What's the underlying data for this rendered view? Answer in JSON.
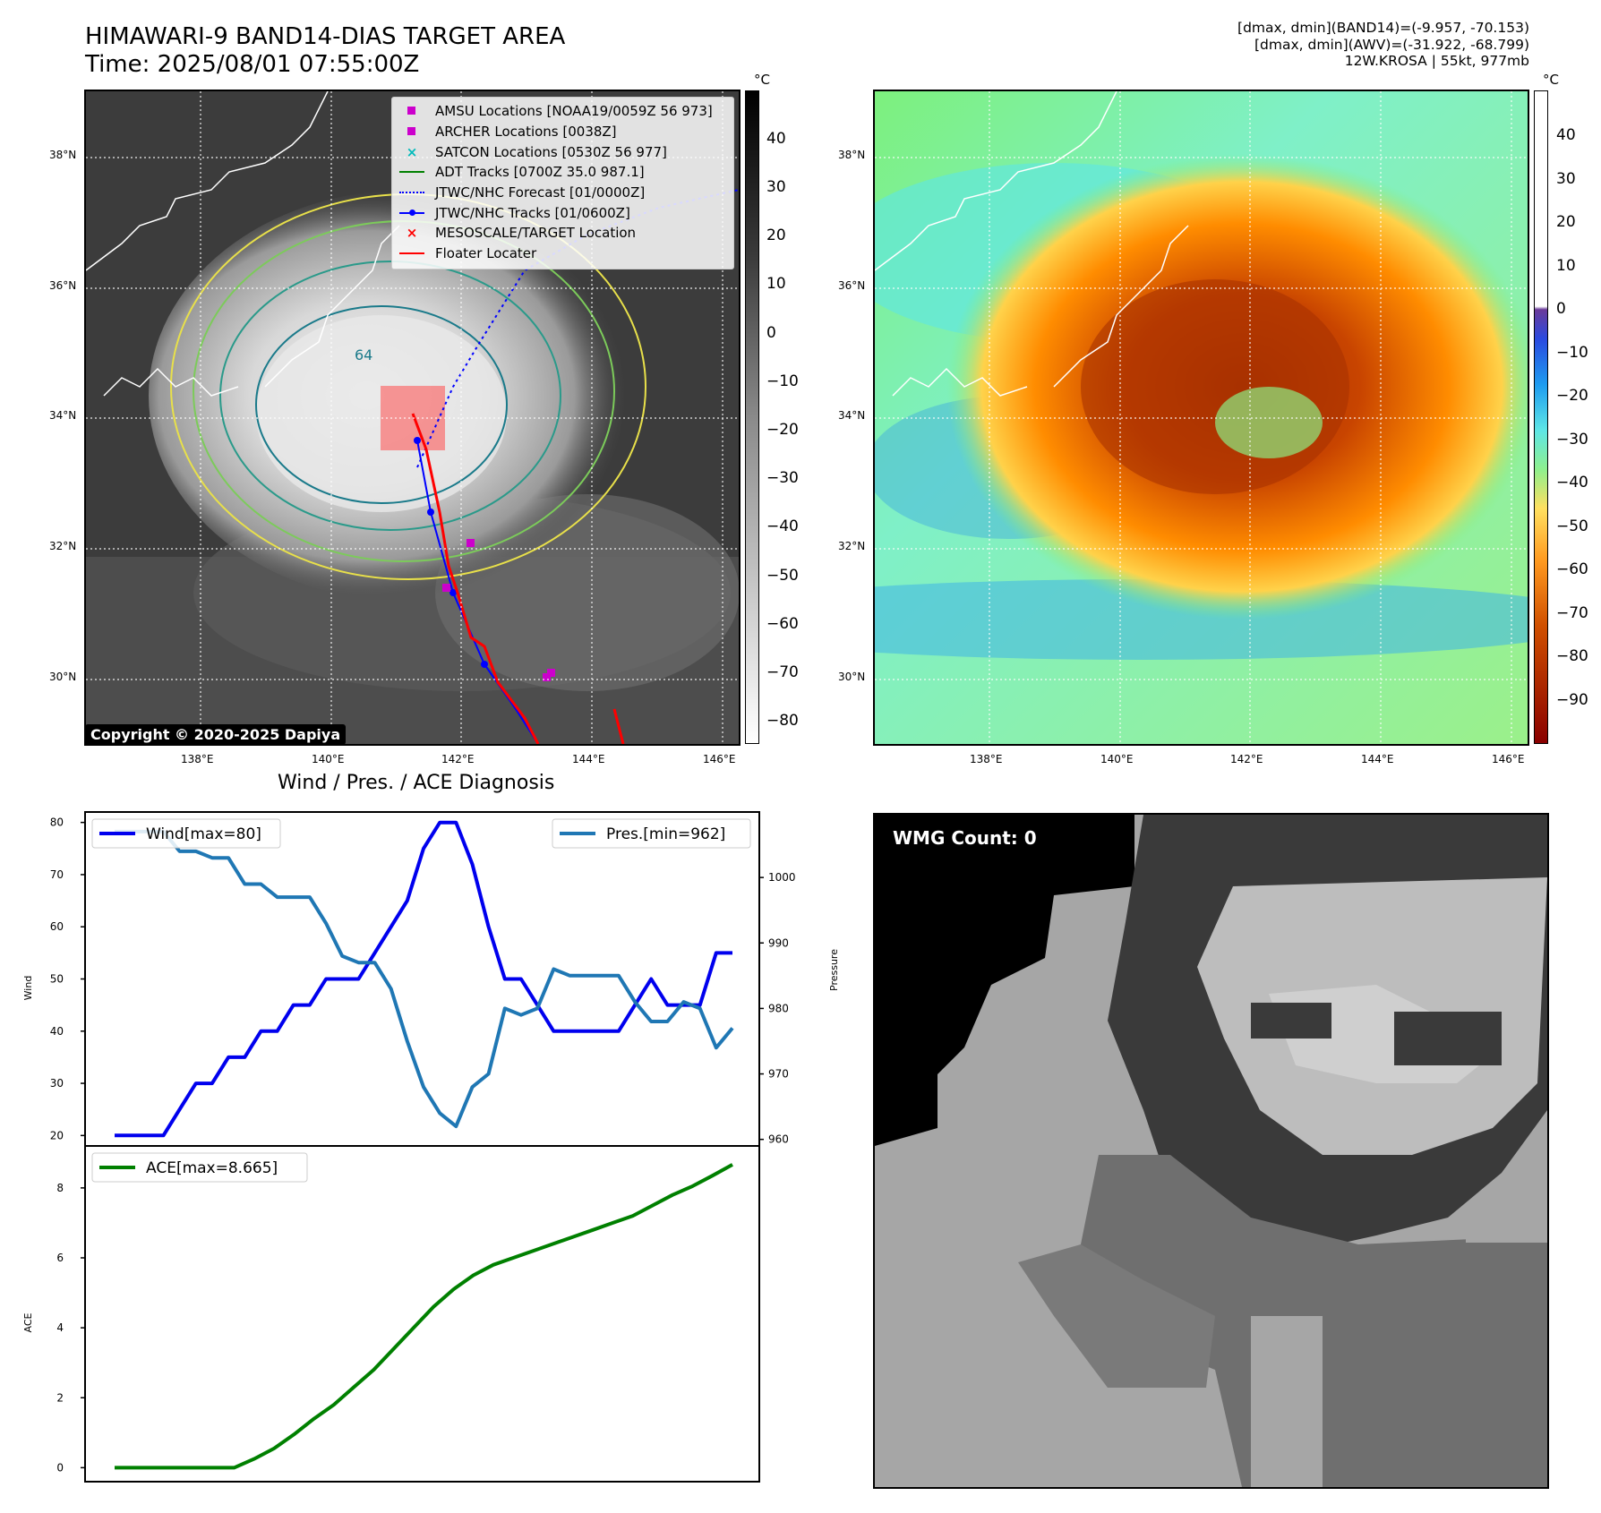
{
  "header": {
    "title_line1": "HIMAWARI-9 BAND14-DIAS TARGET AREA",
    "title_line2": "Time: 2025/08/01 07:55:00Z",
    "meta_line1": "[dmax, dmin](BAND14)=(-9.957, -70.153)",
    "meta_line2": "[dmax, dmin](AWV)=(-31.922, -68.799)",
    "meta_line3": "12W.KROSA | 55kt, 977mb"
  },
  "map_left": {
    "lat_labels": [
      "38°N",
      "36°N",
      "34°N",
      "32°N",
      "30°N"
    ],
    "lon_labels": [
      "138°E",
      "140°E",
      "142°E",
      "144°E",
      "146°E"
    ],
    "contour_label": "64",
    "colorbar_unit": "°C",
    "colorbar_ticks": [
      "40",
      "30",
      "20",
      "10",
      "0",
      "−10",
      "−20",
      "−30",
      "−40",
      "−50",
      "−60",
      "−70",
      "−80"
    ],
    "copyright": "Copyright © 2020-2025 Dapiya",
    "legend": [
      {
        "label": "AMSU Locations [NOAA19/0059Z 56 973]",
        "marker": "square",
        "color": "#cc00cc"
      },
      {
        "label": "ARCHER Locations [0038Z]",
        "marker": "square",
        "color": "#cc00cc"
      },
      {
        "label": "SATCON Locations [0530Z 56 977]",
        "marker": "x",
        "color": "#00bbbb"
      },
      {
        "label": "ADT Tracks [0700Z 35.0 987.1]",
        "marker": "line",
        "color": "#008000"
      },
      {
        "label": "JTWC/NHC Forecast [01/0000Z]",
        "marker": "dotted",
        "color": "#0000ff"
      },
      {
        "label": "JTWC/NHC Tracks [01/0600Z]",
        "marker": "line-dot",
        "color": "#0000ff"
      },
      {
        "label": "MESOSCALE/TARGET Location",
        "marker": "x",
        "color": "#ff0000"
      },
      {
        "label": "Floater Locater",
        "marker": "line",
        "color": "#ff0000"
      }
    ]
  },
  "map_right": {
    "lat_labels": [
      "38°N",
      "36°N",
      "34°N",
      "32°N",
      "30°N"
    ],
    "lon_labels": [
      "138°E",
      "140°E",
      "142°E",
      "144°E",
      "146°E"
    ],
    "colorbar_unit": "°C",
    "colorbar_ticks": [
      "40",
      "30",
      "20",
      "10",
      "0",
      "−10",
      "−20",
      "−30",
      "−40",
      "−50",
      "−60",
      "−70",
      "−80",
      "−90"
    ]
  },
  "wmg_panel": {
    "label": "WMG Count: 0"
  },
  "chart_data": [
    {
      "type": "line",
      "title": "Wind / Pres. / ACE Diagnosis",
      "ylabel": "Wind",
      "y2label": "Pressure",
      "ylim": [
        18,
        82
      ],
      "y2lim": [
        959,
        1010
      ],
      "yticks": [
        20,
        30,
        40,
        50,
        60,
        70,
        80
      ],
      "y2ticks": [
        960,
        970,
        980,
        990,
        1000
      ],
      "series": [
        {
          "name": "Wind[max=80]",
          "axis": "left",
          "color": "#0000ee",
          "values": [
            20,
            20,
            20,
            20,
            25,
            30,
            30,
            35,
            35,
            40,
            40,
            45,
            45,
            50,
            50,
            50,
            55,
            60,
            65,
            75,
            80,
            80,
            72,
            60,
            50,
            50,
            45,
            40,
            40,
            40,
            40,
            40,
            45,
            50,
            45,
            45,
            45,
            55,
            55
          ]
        },
        {
          "name": "Pres.[min=962]",
          "axis": "right",
          "color": "#1f77b4",
          "values": [
            1007,
            1007,
            1007,
            1007,
            1004,
            1004,
            1003,
            1003,
            999,
            999,
            997,
            997,
            997,
            993,
            988,
            987,
            987,
            983,
            975,
            968,
            964,
            962,
            968,
            970,
            980,
            979,
            980,
            986,
            985,
            985,
            985,
            985,
            981,
            978,
            978,
            981,
            980,
            974,
            977
          ]
        }
      ]
    },
    {
      "type": "line",
      "ylabel": "ACE",
      "ylim": [
        -0.4,
        9.2
      ],
      "yticks": [
        0,
        2,
        4,
        6,
        8
      ],
      "series": [
        {
          "name": "ACE[max=8.665]",
          "color": "#008000",
          "values": [
            0,
            0,
            0,
            0,
            0,
            0,
            0,
            0.25,
            0.55,
            0.95,
            1.4,
            1.8,
            2.3,
            2.8,
            3.4,
            4.0,
            4.6,
            5.1,
            5.5,
            5.8,
            6.0,
            6.2,
            6.4,
            6.6,
            6.8,
            7.0,
            7.2,
            7.5,
            7.8,
            8.05,
            8.35,
            8.665
          ]
        }
      ]
    }
  ]
}
